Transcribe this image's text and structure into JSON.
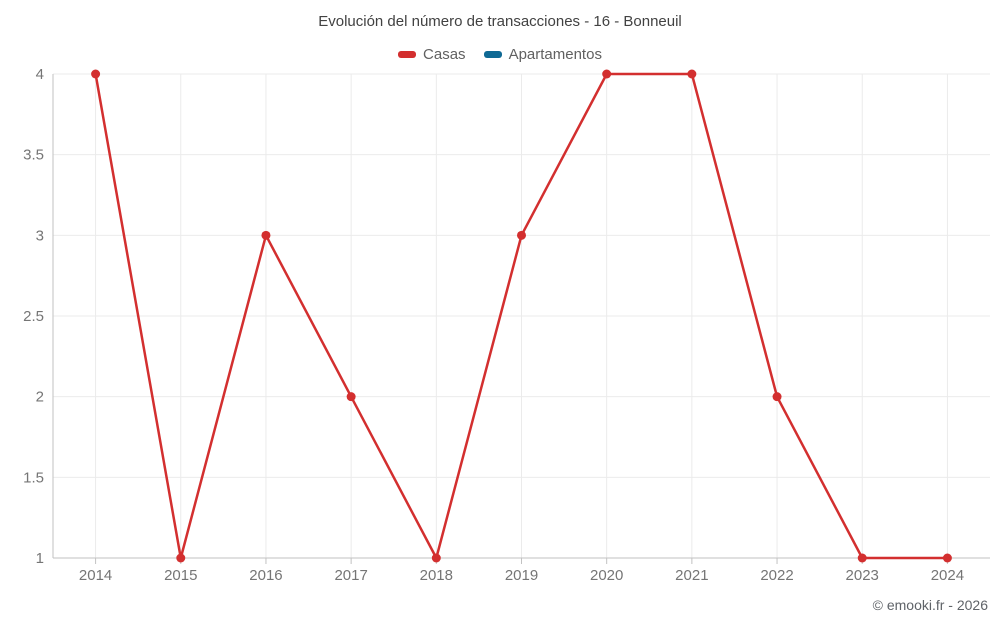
{
  "chart_data": {
    "type": "line",
    "title": "Evolución del número de transacciones - 16 - Bonneuil",
    "categories": [
      "2014",
      "2015",
      "2016",
      "2017",
      "2018",
      "2019",
      "2020",
      "2021",
      "2022",
      "2023",
      "2024"
    ],
    "series": [
      {
        "name": "Casas",
        "color": "#d32f2f",
        "values": [
          4,
          1,
          3,
          2,
          1,
          3,
          4,
          4,
          2,
          1,
          1
        ]
      },
      {
        "name": "Apartamentos",
        "color": "#0f6994",
        "values": []
      }
    ],
    "ylim": [
      1,
      4
    ],
    "ytick_step": 0.5,
    "grid": true,
    "legend_position": "top",
    "colors": {
      "gridline": "#ebebeb",
      "axis_line": "#c2c2c2"
    }
  },
  "footer": {
    "copyright": "© emooki.fr - 2026"
  }
}
